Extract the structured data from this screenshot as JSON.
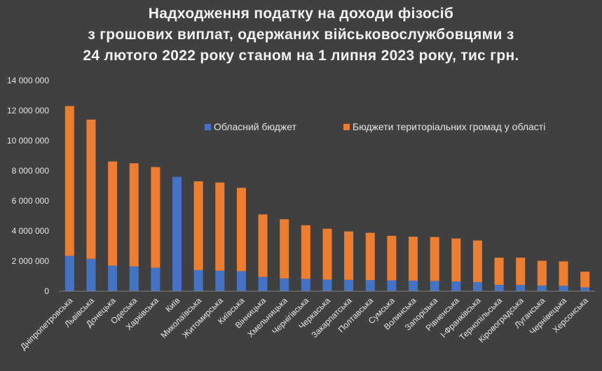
{
  "chart_data": {
    "type": "bar",
    "stacked": true,
    "title_lines": [
      "Надходження податку на доходи фізосіб",
      "з грошових виплат, одержаних військовослужбовцями з",
      "24 лютого 2022 року станом на 1 липня 2023 року, тис грн."
    ],
    "categories": [
      "Дніпропетровська",
      "Львівська",
      "Донецька",
      "Одеська",
      "Харківська",
      "Київ",
      "Миколаївська",
      "Житомирська",
      "Київська",
      "Вінницька",
      "Хмельницька",
      "Чернігівська",
      "Черкаська",
      "Закарпатська",
      "Полтавська",
      "Сумська",
      "Волинська",
      "Запорізька",
      "Рівненська",
      "І-Франківська",
      "Тернопільська",
      "Кіровоградська",
      "Луганська",
      "Чернівецька",
      "Херсонська"
    ],
    "series": [
      {
        "name": "Обласний бюджет",
        "color": "#4472c4",
        "values": [
          2350000,
          2150000,
          1700000,
          1650000,
          1560000,
          7600000,
          1400000,
          1360000,
          1330000,
          950000,
          850000,
          820000,
          770000,
          750000,
          740000,
          720000,
          700000,
          680000,
          650000,
          600000,
          420000,
          420000,
          380000,
          360000,
          250000
        ]
      },
      {
        "name": "Бюджети територіальних громад у області",
        "color": "#ed7d31",
        "values": [
          9950000,
          9250000,
          6920000,
          6850000,
          6690000,
          0,
          5900000,
          5860000,
          5540000,
          4150000,
          3930000,
          3560000,
          3380000,
          3220000,
          3140000,
          2960000,
          2920000,
          2920000,
          2850000,
          2770000,
          1810000,
          1810000,
          1640000,
          1620000,
          1050000
        ]
      }
    ],
    "y_ticks": [
      "0",
      "2 000 000",
      "4 000 000",
      "6 000 000",
      "8 000 000",
      "10 000 000",
      "12 000 000",
      "14 000 000"
    ],
    "ylim": [
      0,
      14000000
    ],
    "grid": false,
    "legend_position": "top-right"
  }
}
